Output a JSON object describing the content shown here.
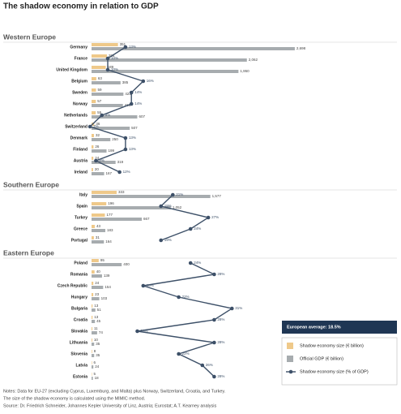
{
  "chart_data": {
    "type": "bar",
    "title": "The shadow economy in relation to GDP",
    "series": [
      {
        "name": "Shadow economy size (€ billion)",
        "color": "#efc98a",
        "type": "bar"
      },
      {
        "name": "Official GDP (€ billion)",
        "color": "#a7acaf",
        "type": "bar"
      },
      {
        "name": "Shadow economy size (% of GDP)",
        "color": "#3d5068",
        "type": "line"
      }
    ],
    "groups": [
      {
        "name": "Western Europe",
        "categories": [
          "Germany",
          "France",
          "United Kingdom",
          "Belgium",
          "Sweden",
          "Norway",
          "Netherlands",
          "Switzerland",
          "Denmark",
          "Finland",
          "Austria",
          "Ireland"
        ],
        "values": [
          [
            351,
            204,
            189,
            63,
            59,
            57,
            55,
            36,
            32,
            26,
            24,
            20
          ],
          [
            2698,
            2062,
            1950,
            385,
            423,
            416,
            607,
            507,
            250,
            199,
            319,
            167
          ],
          [
            13,
            10,
            10,
            16,
            14,
            14,
            9,
            7,
            13,
            13,
            8,
            12
          ]
        ],
        "value_labels": [
          [
            "351",
            "204",
            "189",
            "63",
            "59",
            "57",
            "55",
            "36",
            "32",
            "26",
            "24",
            "20"
          ],
          [
            "2,698",
            "2,062",
            "1,950",
            "385",
            "423",
            "416",
            "607",
            "507",
            "250",
            "199",
            "319",
            "167"
          ],
          [
            "13%",
            "10%",
            "10%",
            "16%",
            "14%",
            "14%",
            "9%",
            "7%",
            "13%",
            "13%",
            "8%",
            "12%"
          ]
        ]
      },
      {
        "name": "Southern Europe",
        "categories": [
          "Italy",
          "Spain",
          "Turkey",
          "Greece",
          "Portugal"
        ],
        "values": [
          [
            333,
            196,
            177,
            43,
            31
          ],
          [
            1577,
            1052,
            667,
            183,
            164
          ],
          [
            21,
            19,
            27,
            24,
            19
          ]
        ],
        "value_labels": [
          [
            "333",
            "196",
            "177",
            "43",
            "31"
          ],
          [
            "1,577",
            "1,052",
            "667",
            "183",
            "164"
          ],
          [
            "21%",
            "19%",
            "27%",
            "24%",
            "19%"
          ]
        ]
      },
      {
        "name": "Eastern Europe",
        "categories": [
          "Poland",
          "Romania",
          "Czech Republic",
          "Hungary",
          "Bulgaria",
          "Croatia",
          "Slovakia",
          "Lithuania",
          "Slovenia",
          "Latvia",
          "Estonia"
        ],
        "values": [
          [
            95,
            40,
            24,
            23,
            13,
            13,
            11,
            10,
            8,
            6,
            5
          ],
          [
            400,
            139,
            154,
            103,
            51,
            45,
            74,
            35,
            35,
            24,
            18
          ],
          [
            24,
            28,
            16,
            22,
            31,
            28,
            15,
            28,
            22,
            26,
            28
          ]
        ],
        "value_labels": [
          [
            "95",
            "40",
            "24",
            "23",
            "13",
            "13",
            "11",
            "10",
            "8",
            "6",
            "5"
          ],
          [
            "400",
            "139",
            "154",
            "103",
            "51",
            "45",
            "74",
            "35",
            "35",
            "24",
            "18"
          ],
          [
            "24%",
            "28%",
            "16%",
            "22%",
            "31%",
            "28%",
            "15%",
            "28%",
            "22%",
            "26%",
            "28%"
          ]
        ]
      }
    ],
    "annotation": "European average: 18.5%",
    "notes": [
      "Notes: Data for EU-27 (excluding Cyprus, Luxemburg, and Malta) plus Norway, Switzerland, Croatia, and Turkey.",
      "The size of the shadow economy is calculated using the MIMIC method.",
      "Source: Dr. Friedrich Schneider, Johannes Kepler University of Linz, Austria; Eurostat; A.T. Kearney analysis"
    ]
  }
}
